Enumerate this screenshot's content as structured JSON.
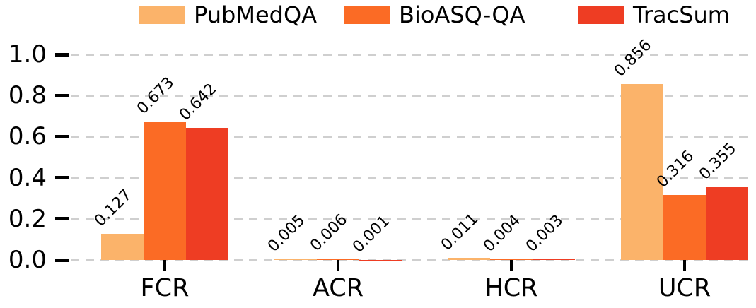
{
  "chart_data": {
    "type": "bar",
    "title": "",
    "xlabel": "",
    "ylabel": "",
    "categories": [
      "FCR",
      "ACR",
      "HCR",
      "UCR"
    ],
    "series": [
      {
        "name": "PubMedQA",
        "color": "#FBB36A",
        "values": [
          0.127,
          0.005,
          0.011,
          0.856
        ]
      },
      {
        "name": "BioASQ-QA",
        "color": "#FB6B25",
        "values": [
          0.673,
          0.006,
          0.004,
          0.316
        ]
      },
      {
        "name": "TracSum",
        "color": "#EE3D23",
        "values": [
          0.642,
          0.001,
          0.003,
          0.355
        ]
      }
    ],
    "ylim": [
      0.0,
      1.0
    ],
    "yticks": [
      "0.0",
      "0.2",
      "0.4",
      "0.6",
      "0.8",
      "1.0"
    ],
    "grid": "dashed horizontal gridlines, no axis spines",
    "gridline_color": "#cfcfcf",
    "text_color": "#000000",
    "legend_position": "top center",
    "bar_label_format": "3 decimals",
    "bar_label_rotation_deg": 45
  }
}
